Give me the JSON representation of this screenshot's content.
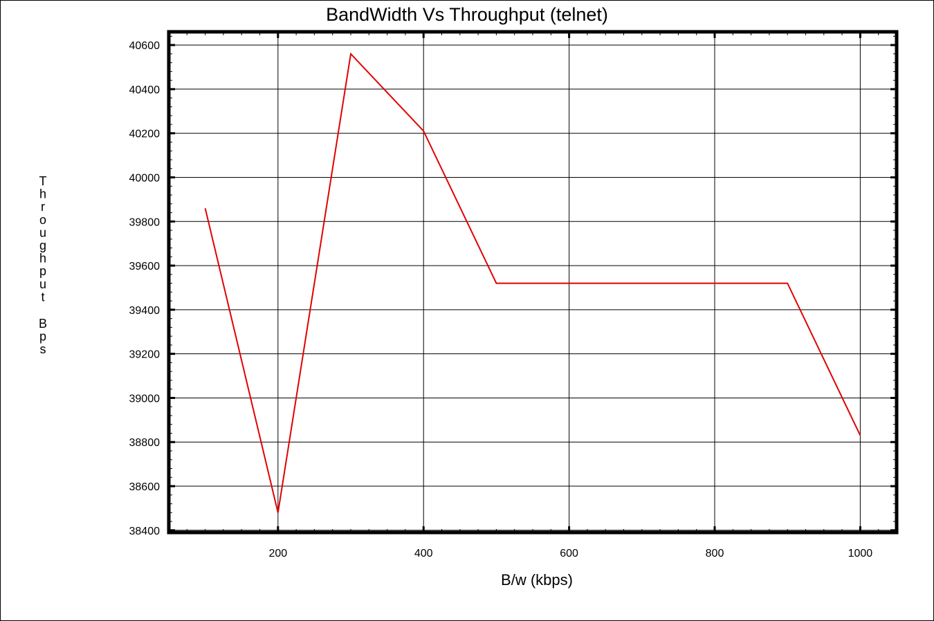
{
  "chart_data": {
    "type": "line",
    "title": "BandWidth Vs Throughput (telnet)",
    "xlabel": "B/w (kbps)",
    "ylabel": "Throughput Bps",
    "xlim": [
      50,
      1050
    ],
    "ylim": [
      38390,
      40660
    ],
    "xticks": [
      200,
      400,
      600,
      800,
      1000
    ],
    "yticks": [
      38400,
      38600,
      38800,
      39000,
      39200,
      39400,
      39600,
      39800,
      40000,
      40200,
      40400,
      40600
    ],
    "grid": true,
    "series": [
      {
        "color": "#e00000",
        "x": [
          100,
          200,
          300,
          400,
          500,
          600,
          700,
          800,
          900,
          1000
        ],
        "y": [
          39860,
          38480,
          40560,
          40210,
          39520,
          39520,
          39520,
          39520,
          39520,
          38830
        ]
      }
    ]
  },
  "colors": {
    "series": "#e00000",
    "grid": "#000000",
    "frame": "#000000",
    "background": "#ffffff"
  }
}
